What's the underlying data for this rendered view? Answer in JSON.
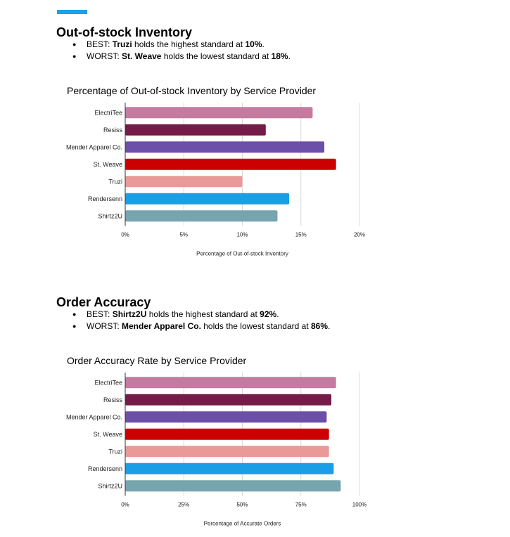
{
  "accent_color": "#1da1e8",
  "sections": [
    {
      "heading": "Out-of-stock Inventory",
      "best": {
        "prefix": "BEST: ",
        "name": "Truzi",
        "mid": " holds the highest standard at ",
        "value": "10%",
        "end": "."
      },
      "worst": {
        "prefix": "WORST: ",
        "name": "St. Weave",
        "mid": " holds the lowest standard at ",
        "value": "18%",
        "end": "."
      },
      "chart_data": {
        "type": "bar",
        "orientation": "horizontal",
        "title": "Percentage of Out-of-stock Inventory by Service Provider",
        "xlabel": "Percentage of Out-of-stock Inventory",
        "ylabel": "",
        "categories": [
          "ElectriTee",
          "Resiss",
          "Mender Apparel Co.",
          "St. Weave",
          "Truzi",
          "Rendersenn",
          "Shirtz2U"
        ],
        "values": [
          16,
          12,
          17,
          18,
          10,
          14,
          13
        ],
        "colors": [
          "#c57aa0",
          "#741b47",
          "#6c4fa8",
          "#cc0000",
          "#ea9999",
          "#1c9ee6",
          "#76a5af"
        ],
        "xlim": [
          0,
          20
        ],
        "ticks": [
          0,
          5,
          10,
          15,
          20
        ],
        "tick_labels": [
          "0%",
          "5%",
          "10%",
          "15%",
          "20%"
        ],
        "grid": true
      }
    },
    {
      "heading": "Order Accuracy",
      "best": {
        "prefix": "BEST: ",
        "name": "Shirtz2U",
        "mid": " holds the highest standard at ",
        "value": "92%",
        "end": "."
      },
      "worst": {
        "prefix": "WORST: ",
        "name": "Mender Apparel Co.",
        "mid": " holds the lowest standard at ",
        "value": "86%",
        "end": "."
      },
      "chart_data": {
        "type": "bar",
        "orientation": "horizontal",
        "title": "Order Accuracy Rate by Service Provider",
        "xlabel": "Percentage of Accurate Orders",
        "ylabel": "",
        "categories": [
          "ElectriTee",
          "Resiss",
          "Mender Apparel Co.",
          "St. Weave",
          "Truzi",
          "Rendersenn",
          "Shirtz2U"
        ],
        "values": [
          90,
          88,
          86,
          87,
          87,
          89,
          92
        ],
        "colors": [
          "#c57aa0",
          "#741b47",
          "#6c4fa8",
          "#cc0000",
          "#ea9999",
          "#1c9ee6",
          "#76a5af"
        ],
        "xlim": [
          0,
          100
        ],
        "ticks": [
          0,
          25,
          50,
          75,
          100
        ],
        "tick_labels": [
          "0%",
          "25%",
          "50%",
          "75%",
          "100%"
        ],
        "grid": true
      }
    }
  ]
}
